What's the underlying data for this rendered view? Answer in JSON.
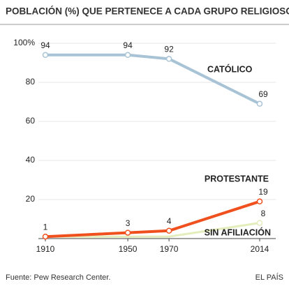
{
  "chart_data": {
    "type": "line",
    "title": "POBLACIÓN (%) QUE PERTENECE A CADA GRUPO RELIGIOSO",
    "source": "Fuente: Pew Research Center.",
    "publisher": "EL PAÍS",
    "x": [
      1910,
      1950,
      1970,
      2014
    ],
    "xlim": [
      1910,
      2014
    ],
    "xticks": [
      1910,
      1950,
      1970,
      2014
    ],
    "ylim": [
      0,
      100
    ],
    "yticks": [
      20,
      40,
      60,
      80,
      {
        "value": 100,
        "label": "100%"
      }
    ],
    "grid": true,
    "series": [
      {
        "name": "CATÓLICO",
        "color": "#a8c3d5",
        "values": [
          94,
          94,
          92,
          69
        ]
      },
      {
        "name": "PROTESTANTE",
        "color": "#f0501e",
        "values": [
          1,
          3,
          4,
          19
        ]
      },
      {
        "name": "SIN AFILIACIÓN",
        "color": "#e3edbb",
        "values": [
          1,
          1,
          1,
          8
        ],
        "value_labels": [
          null,
          null,
          null,
          "8"
        ]
      }
    ]
  }
}
